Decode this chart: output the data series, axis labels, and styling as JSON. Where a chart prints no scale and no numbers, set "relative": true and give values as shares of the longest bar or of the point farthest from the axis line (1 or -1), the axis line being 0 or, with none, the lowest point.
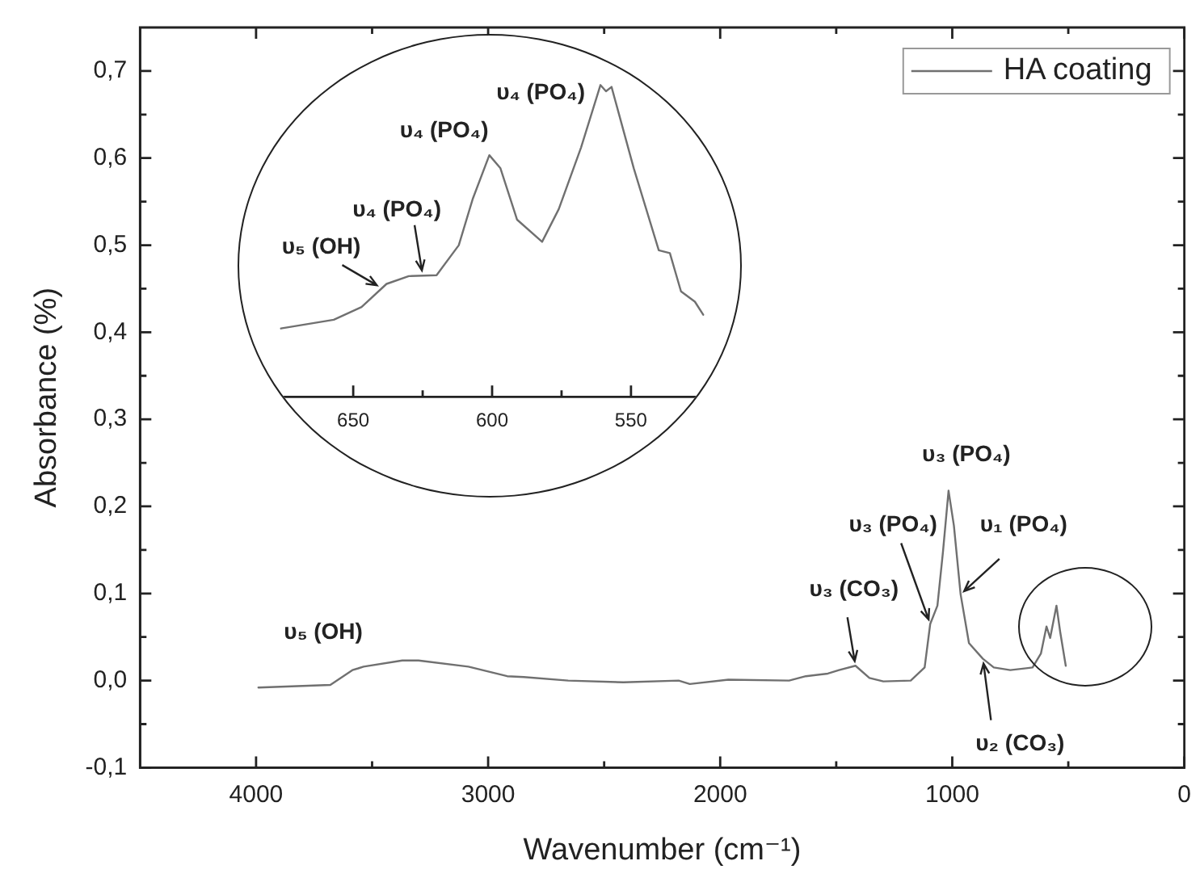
{
  "chart_data": [
    {
      "type": "line",
      "xlabel": "Wavenumber (cm⁻¹)",
      "ylabel": "Absorbance (%)",
      "xlim": [
        4500,
        0
      ],
      "xticks": [
        4000,
        {
          "value": 3500,
          "label": null
        },
        3000,
        {
          "value": 2500,
          "label": null
        },
        2000,
        {
          "value": 1500,
          "label": null
        },
        1000,
        {
          "value": 500,
          "label": null
        },
        0
      ],
      "ylim": [
        -0.1,
        0.75
      ],
      "yticks": [
        {
          "value": -0.1,
          "label": "-0,1"
        },
        {
          "value": -0.05,
          "label": null
        },
        {
          "value": 0,
          "label": "0,0"
        },
        {
          "value": 0.05,
          "label": null
        },
        {
          "value": 0.1,
          "label": "0,1"
        },
        {
          "value": 0.15,
          "label": null
        },
        {
          "value": 0.2,
          "label": "0,2"
        },
        {
          "value": 0.25,
          "label": null
        },
        {
          "value": 0.3,
          "label": "0,3"
        },
        {
          "value": 0.35,
          "label": null
        },
        {
          "value": 0.4,
          "label": "0,4"
        },
        {
          "value": 0.45,
          "label": null
        },
        {
          "value": 0.5,
          "label": "0,5"
        },
        {
          "value": 0.55,
          "label": null
        },
        {
          "value": 0.6,
          "label": "0,6"
        },
        {
          "value": 0.65,
          "label": null
        },
        {
          "value": 0.7,
          "label": "0,7"
        }
      ],
      "legend": "top right",
      "series": [
        {
          "name": "HA coating",
          "color": "#707070",
          "x": [
            3990,
            3680,
            3585,
            3560,
            3537,
            3370,
            3300,
            3085,
            2918,
            2846,
            2655,
            2417,
            2179,
            2131,
            1965,
            1703,
            1631,
            1536,
            1488,
            1417,
            1357,
            1297,
            1179,
            1119,
            1095,
            1064,
            1040,
            1016,
            993,
            964,
            928,
            868,
            821,
            750,
            654,
            618,
            594,
            578,
            551,
            535,
            511
          ],
          "values": [
            -0.008,
            -0.005,
            0.012,
            0.014,
            0.016,
            0.023,
            0.023,
            0.016,
            0.005,
            0.004,
            0.0,
            -0.002,
            0.0,
            -0.004,
            0.001,
            0.0,
            0.005,
            0.008,
            0.012,
            0.017,
            0.003,
            -0.001,
            0.0,
            0.015,
            0.065,
            0.086,
            0.148,
            0.218,
            0.178,
            0.099,
            0.043,
            0.025,
            0.015,
            0.012,
            0.015,
            0.031,
            0.062,
            0.049,
            0.086,
            0.056,
            0.017
          ]
        }
      ],
      "annotations": [
        {
          "text": "υ₅ (OH)",
          "x": 3550,
          "y": 0.014
        },
        {
          "text": "υ₃ (CO₃)",
          "x": 1417,
          "y": 0.017
        },
        {
          "text": "υ₃ (PO₄)",
          "x": 1095,
          "y": 0.065
        },
        {
          "text": "υ₃ (PO₄)",
          "x": 1016,
          "y": 0.218
        },
        {
          "text": "υ₁ (PO₄)",
          "x": 964,
          "y": 0.099
        },
        {
          "text": "υ₂ (CO₃)",
          "x": 868,
          "y": 0.025
        }
      ]
    },
    {
      "type": "line",
      "relative": true,
      "xlim": [
        680,
        520
      ],
      "xticks": [
        650,
        {
          "value": 625,
          "label": null
        },
        600,
        {
          "value": 575,
          "label": null
        },
        550
      ],
      "tick_labels": "x",
      "series": [
        {
          "color": "#707070",
          "x": [
            676,
            657,
            647,
            638,
            630,
            620,
            612,
            607,
            601,
            597,
            591,
            582,
            576,
            568,
            561,
            559,
            557,
            549,
            540,
            536,
            532,
            527,
            524
          ],
          "values": [
            0.219,
            0.247,
            0.288,
            0.362,
            0.387,
            0.39,
            0.486,
            0.634,
            0.775,
            0.733,
            0.568,
            0.497,
            0.602,
            0.799,
            1,
            0.98,
            0.994,
            0.733,
            0.47,
            0.461,
            0.338,
            0.305,
            0.263
          ]
        }
      ],
      "annotations": [
        {
          "text": "υ₅ (OH)",
          "x": 640,
          "y": 0.35
        },
        {
          "text": "υ₄ (PO₄)",
          "x": 625,
          "y": 0.39
        },
        {
          "text": "υ₄ (PO₄)",
          "x": 601,
          "y": 0.775
        },
        {
          "text": "υ₄ (PO₄)",
          "x": 561,
          "y": 1
        }
      ]
    }
  ]
}
